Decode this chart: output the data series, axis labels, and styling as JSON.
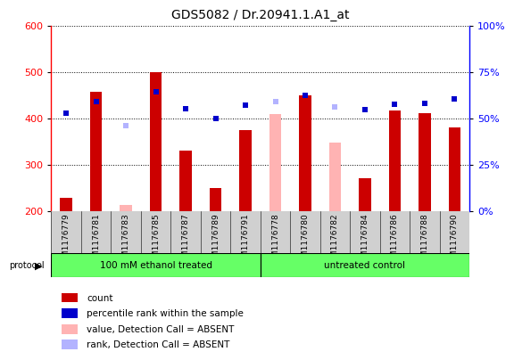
{
  "title": "GDS5082 / Dr.20941.1.A1_at",
  "samples": [
    "GSM1176779",
    "GSM1176781",
    "GSM1176783",
    "GSM1176785",
    "GSM1176787",
    "GSM1176789",
    "GSM1176791",
    "GSM1176778",
    "GSM1176780",
    "GSM1176782",
    "GSM1176784",
    "GSM1176786",
    "GSM1176788",
    "GSM1176790"
  ],
  "count_present": [
    228,
    457,
    null,
    499,
    330,
    249,
    374,
    null,
    449,
    null,
    271,
    416,
    410,
    380
  ],
  "count_absent": [
    null,
    null,
    213,
    null,
    null,
    null,
    null,
    408,
    null,
    348,
    null,
    null,
    null,
    null
  ],
  "rank_present": [
    410,
    436,
    null,
    457,
    420,
    399,
    428,
    null,
    449,
    null,
    418,
    430,
    432,
    441
  ],
  "rank_absent": [
    null,
    null,
    384,
    null,
    null,
    null,
    null,
    436,
    null,
    424,
    null,
    null,
    null,
    null
  ],
  "ylim_left": [
    200,
    600
  ],
  "ylim_right": [
    0,
    100
  ],
  "yticks_left": [
    200,
    300,
    400,
    500,
    600
  ],
  "yticks_right": [
    0,
    25,
    50,
    75,
    100
  ],
  "bar_bottom": 200,
  "protocol_groups": [
    {
      "label": "100 mM ethanol treated",
      "n_samples": 7
    },
    {
      "label": "untreated control",
      "n_samples": 7
    }
  ],
  "legend_labels": [
    "count",
    "percentile rank within the sample",
    "value, Detection Call = ABSENT",
    "rank, Detection Call = ABSENT"
  ],
  "legend_colors": [
    "#cc0000",
    "#0000cc",
    "#ffb3b3",
    "#b3b3ff"
  ],
  "color_bar_present": "#cc0000",
  "color_bar_absent": "#ffb3b3",
  "color_rank_present": "#0000cc",
  "color_rank_absent": "#b3b3ff",
  "protocol_color": "#66ff66",
  "title_fontsize": 10
}
